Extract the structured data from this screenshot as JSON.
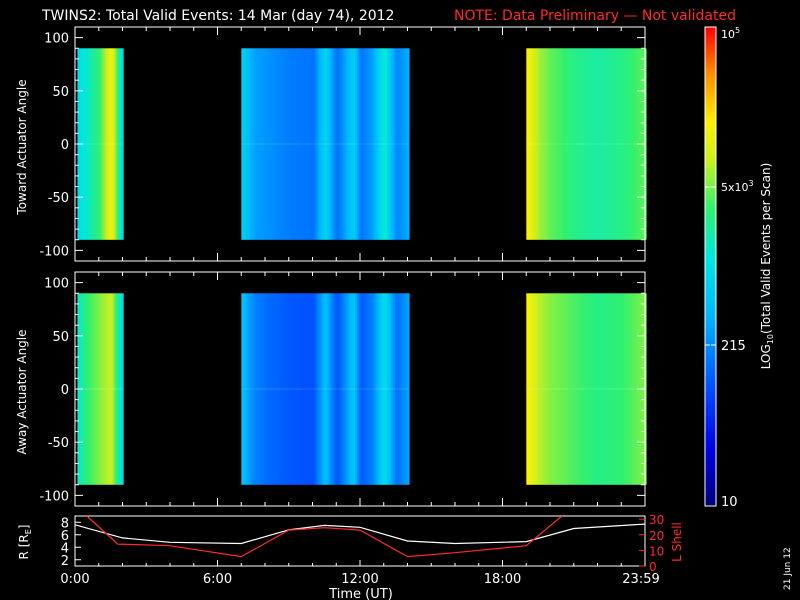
{
  "header": {
    "title": "TWINS2: Total Valid Events: 14 Mar (day  74), 2012",
    "note": "NOTE: Data Preliminary — Not validated"
  },
  "panels": [
    {
      "ylabel": "Toward Actuator Angle",
      "yticks": [
        "100",
        "50",
        "0",
        "-50",
        "-100"
      ]
    },
    {
      "ylabel": "Away Actuator Angle",
      "yticks": [
        "100",
        "50",
        "0",
        "-50",
        "-100"
      ]
    }
  ],
  "orbit_panel": {
    "left_label": "R [R",
    "left_label_sub": "E",
    "left_label_end": "]",
    "right_label": "L Shell",
    "left_ticks": [
      "8",
      "6",
      "4",
      "2"
    ],
    "right_ticks": [
      "30",
      "20",
      "10",
      "0"
    ]
  },
  "xaxis": {
    "label": "Time (UT)",
    "ticks": [
      "0:00",
      "6:00",
      "12:00",
      "18:00",
      "23:59"
    ]
  },
  "colorbar": {
    "label_pre": "LOG",
    "label_sub": "10",
    "label_post": "(Total Valid Events per Scan)",
    "tick_top": "10",
    "tick_top_exp": "5",
    "tick_5e3": "5x10",
    "tick_5e3_exp": "3",
    "tick_215": "215",
    "tick_10": "10"
  },
  "date_stamp": "21 Jun 12",
  "colors": {
    "note": "#ff2a2a",
    "r_line": "#ffffff",
    "lshell_line": "#ff2a2a"
  },
  "chart_data": [
    {
      "type": "heatmap",
      "title": "TWINS2: Total Valid Events: 14 Mar (day  74), 2012",
      "xlabel": "Time (UT)",
      "ylabel": "Toward Actuator Angle",
      "xlim_hours": [
        0,
        24
      ],
      "ylim": [
        -110,
        110
      ],
      "angle_range": [
        -90,
        90
      ],
      "color_scale": "log10",
      "color_range": [
        10,
        100000
      ],
      "data_intervals_hours": [
        [
          0.1,
          2.0
        ],
        [
          7.0,
          14.0
        ],
        [
          19.0,
          23.99
        ]
      ],
      "profile_hours": [
        0.1,
        0.5,
        1.0,
        1.5,
        1.95,
        7.0,
        7.5,
        8.0,
        9.0,
        10.0,
        10.5,
        11.0,
        11.7,
        12.0,
        12.5,
        13.0,
        13.5,
        13.99,
        19.0,
        19.5,
        20.0,
        21.0,
        22.0,
        23.0,
        23.99
      ],
      "events_per_scan": [
        900,
        1500,
        3000,
        15000,
        900,
        700,
        300,
        250,
        180,
        160,
        800,
        150,
        700,
        160,
        300,
        1500,
        200,
        350,
        15000,
        6000,
        4000,
        2500,
        2000,
        2500,
        4000
      ]
    },
    {
      "type": "heatmap",
      "xlabel": "Time (UT)",
      "ylabel": "Away Actuator Angle",
      "xlim_hours": [
        0,
        24
      ],
      "ylim": [
        -110,
        110
      ],
      "angle_range": [
        -90,
        90
      ],
      "color_scale": "log10",
      "color_range": [
        10,
        100000
      ],
      "data_intervals_hours": [
        [
          0.1,
          2.0
        ],
        [
          7.0,
          14.0
        ],
        [
          19.0,
          23.99
        ]
      ],
      "profile_hours": [
        0.1,
        0.5,
        1.0,
        1.5,
        1.95,
        7.0,
        7.5,
        8.0,
        9.0,
        10.0,
        10.5,
        11.0,
        11.7,
        12.0,
        12.5,
        13.0,
        13.5,
        13.99,
        19.0,
        19.5,
        20.0,
        21.0,
        22.0,
        23.0,
        23.99
      ],
      "events_per_scan": [
        1500,
        3000,
        5000,
        8000,
        900,
        500,
        200,
        150,
        110,
        100,
        500,
        100,
        600,
        110,
        200,
        1000,
        150,
        300,
        15000,
        7000,
        5000,
        3500,
        2500,
        3000,
        5000
      ]
    },
    {
      "type": "line",
      "xlabel": "Time (UT)",
      "xlim_hours": [
        0,
        24
      ],
      "series": [
        {
          "name": "R [RE]",
          "axis": "left",
          "ylim": [
            1,
            9
          ],
          "x": [
            0,
            2,
            4,
            7,
            9,
            10.5,
            12,
            14,
            16,
            19,
            21,
            23.99
          ],
          "values": [
            7.6,
            5.5,
            4.8,
            4.6,
            6.8,
            7.5,
            7.2,
            5.0,
            4.6,
            4.9,
            7.0,
            7.7
          ]
        },
        {
          "name": "L Shell",
          "axis": "right",
          "ylim": [
            0,
            32
          ],
          "x": [
            0.5,
            1.8,
            4,
            7,
            9,
            10.5,
            12,
            14,
            16,
            19,
            20.5
          ],
          "values": [
            32,
            14,
            13,
            6,
            23,
            24.5,
            23,
            6,
            8.5,
            13,
            32
          ]
        }
      ]
    }
  ]
}
